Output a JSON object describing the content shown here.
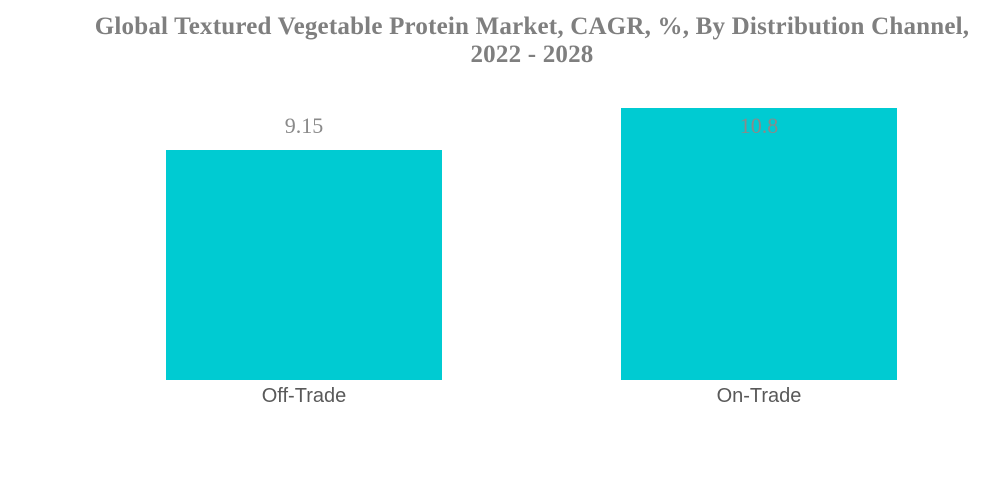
{
  "title": {
    "line1": "Global Textured Vegetable Protein Market, CAGR, %, By Distribution Channel,",
    "line2": "2022 - 2028"
  },
  "chart_data": {
    "type": "bar",
    "title": "Global Textured Vegetable Protein Market, CAGR, %, By Distribution Channel, 2022 - 2028",
    "categories": [
      "Off-Trade",
      "On-Trade"
    ],
    "values": [
      9.15,
      10.8
    ],
    "xlabel": "",
    "ylabel": "",
    "ylim": [
      0,
      10.8
    ],
    "grid": false,
    "legend": false,
    "value_labels": true,
    "bar_color": "#00cbd2"
  },
  "colors": {
    "bar": "#00cbd2",
    "title_text": "#7f7f7f",
    "value_label_text": "#8a8a8a",
    "category_label_text": "#595959",
    "background": "#ffffff"
  }
}
